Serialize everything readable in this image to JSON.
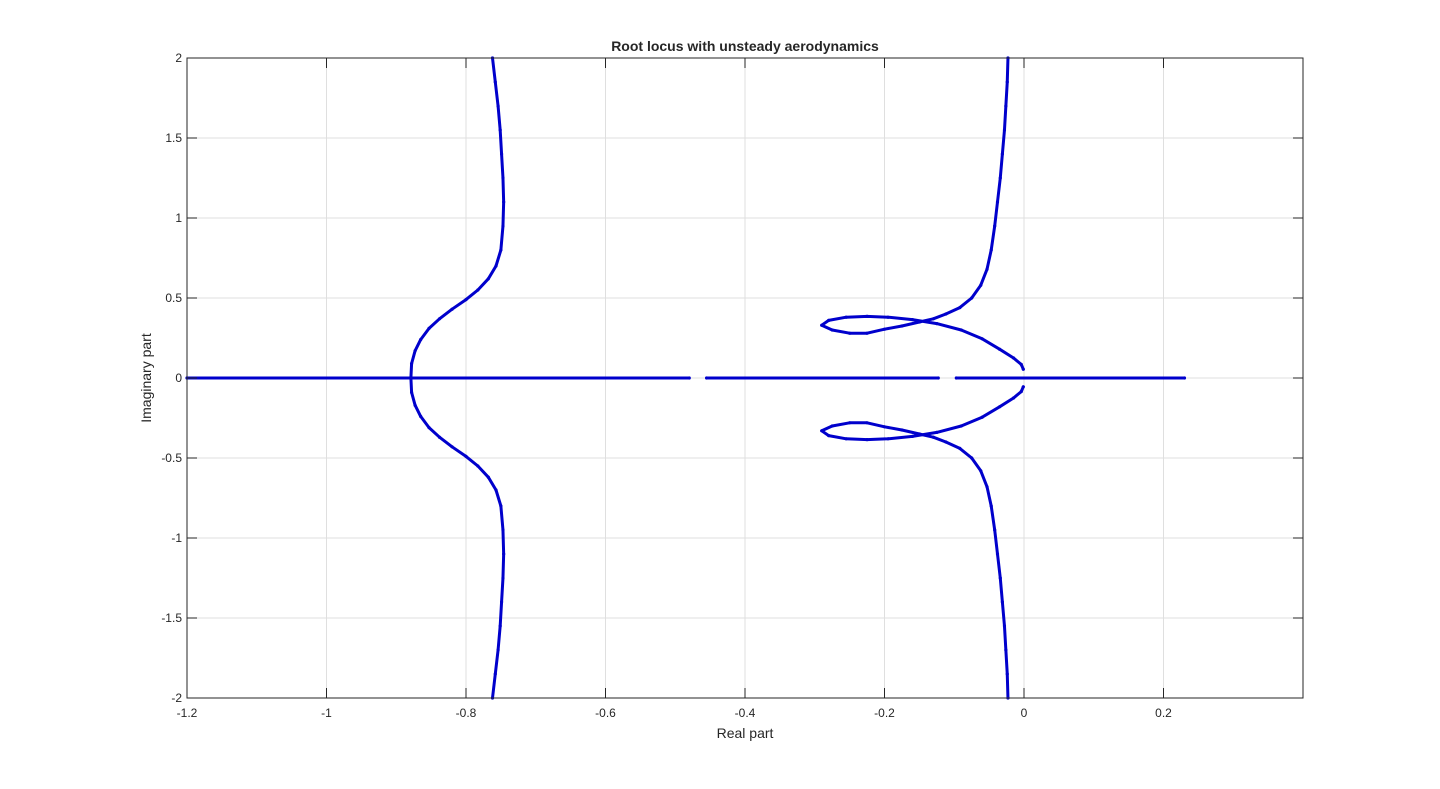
{
  "chart_data": {
    "type": "scatter",
    "title": "Root locus with unsteady aerodynamics",
    "xlabel": "Real part",
    "ylabel": "Imaginary part",
    "xlim": [
      -1.2,
      0.4
    ],
    "ylim": [
      -2,
      2
    ],
    "xticks": [
      -1.2,
      -1,
      -0.8,
      -0.6,
      -0.4,
      -0.2,
      0,
      0.2
    ],
    "xtick_labels": [
      "-1.2",
      "-1",
      "-0.8",
      "-0.6",
      "-0.4",
      "-0.2",
      "0",
      "0.2"
    ],
    "yticks": [
      -2,
      -1.5,
      -1,
      -0.5,
      0,
      0.5,
      1,
      1.5,
      2
    ],
    "ytick_labels": [
      "-2",
      "-1.5",
      "-1",
      "-0.5",
      "0",
      "0.5",
      "1",
      "1.5",
      "2"
    ],
    "grid": true,
    "marker_color": "#0000cc",
    "series": [
      {
        "points": [
          [
            -0.762,
            2.0
          ],
          [
            -0.758,
            1.85
          ],
          [
            -0.754,
            1.7
          ],
          [
            -0.751,
            1.55
          ],
          [
            -0.749,
            1.4
          ],
          [
            -0.747,
            1.25
          ],
          [
            -0.746,
            1.1
          ],
          [
            -0.747,
            0.95
          ],
          [
            -0.75,
            0.8
          ],
          [
            -0.757,
            0.7
          ],
          [
            -0.768,
            0.62
          ],
          [
            -0.783,
            0.55
          ],
          [
            -0.8,
            0.49
          ],
          [
            -0.82,
            0.43
          ],
          [
            -0.838,
            0.37
          ],
          [
            -0.853,
            0.31
          ],
          [
            -0.865,
            0.24
          ],
          [
            -0.873,
            0.17
          ],
          [
            -0.878,
            0.09
          ],
          [
            -0.879,
            0.0
          ]
        ]
      },
      {
        "points": [
          [
            -0.879,
            0.0
          ],
          [
            -0.878,
            -0.09
          ],
          [
            -0.873,
            -0.17
          ],
          [
            -0.865,
            -0.24
          ],
          [
            -0.853,
            -0.31
          ],
          [
            -0.838,
            -0.37
          ],
          [
            -0.82,
            -0.43
          ],
          [
            -0.8,
            -0.49
          ],
          [
            -0.783,
            -0.55
          ],
          [
            -0.768,
            -0.62
          ],
          [
            -0.757,
            -0.7
          ],
          [
            -0.75,
            -0.8
          ],
          [
            -0.747,
            -0.95
          ],
          [
            -0.746,
            -1.1
          ],
          [
            -0.747,
            -1.25
          ],
          [
            -0.749,
            -1.4
          ],
          [
            -0.751,
            -1.55
          ],
          [
            -0.754,
            -1.7
          ],
          [
            -0.758,
            -1.85
          ],
          [
            -0.762,
            -2.0
          ]
        ]
      },
      {
        "points": [
          [
            -0.023,
            2.0
          ],
          [
            -0.024,
            1.85
          ],
          [
            -0.026,
            1.7
          ],
          [
            -0.028,
            1.55
          ],
          [
            -0.031,
            1.4
          ],
          [
            -0.034,
            1.25
          ],
          [
            -0.038,
            1.1
          ],
          [
            -0.042,
            0.95
          ],
          [
            -0.047,
            0.8
          ],
          [
            -0.053,
            0.68
          ],
          [
            -0.062,
            0.58
          ],
          [
            -0.075,
            0.5
          ],
          [
            -0.092,
            0.44
          ],
          [
            -0.112,
            0.4
          ],
          [
            -0.13,
            0.37
          ],
          [
            -0.15,
            0.35
          ],
          [
            -0.175,
            0.325
          ],
          [
            -0.2,
            0.305
          ],
          [
            -0.225,
            0.28
          ],
          [
            -0.25,
            0.28
          ],
          [
            -0.275,
            0.3
          ],
          [
            -0.29,
            0.33
          ],
          [
            -0.28,
            0.36
          ],
          [
            -0.255,
            0.38
          ],
          [
            -0.225,
            0.385
          ],
          [
            -0.195,
            0.38
          ],
          [
            -0.16,
            0.365
          ],
          [
            -0.125,
            0.34
          ],
          [
            -0.09,
            0.3
          ],
          [
            -0.06,
            0.245
          ],
          [
            -0.035,
            0.18
          ],
          [
            -0.015,
            0.125
          ],
          [
            -0.004,
            0.085
          ],
          [
            -0.001,
            0.055
          ]
        ]
      },
      {
        "points": [
          [
            -0.001,
            -0.055
          ],
          [
            -0.004,
            -0.085
          ],
          [
            -0.015,
            -0.125
          ],
          [
            -0.035,
            -0.18
          ],
          [
            -0.06,
            -0.245
          ],
          [
            -0.09,
            -0.3
          ],
          [
            -0.125,
            -0.34
          ],
          [
            -0.16,
            -0.365
          ],
          [
            -0.195,
            -0.38
          ],
          [
            -0.225,
            -0.385
          ],
          [
            -0.255,
            -0.38
          ],
          [
            -0.28,
            -0.36
          ],
          [
            -0.29,
            -0.33
          ],
          [
            -0.275,
            -0.3
          ],
          [
            -0.25,
            -0.28
          ],
          [
            -0.225,
            -0.28
          ],
          [
            -0.2,
            -0.305
          ],
          [
            -0.175,
            -0.325
          ],
          [
            -0.15,
            -0.35
          ],
          [
            -0.13,
            -0.37
          ],
          [
            -0.112,
            -0.4
          ],
          [
            -0.092,
            -0.44
          ],
          [
            -0.075,
            -0.5
          ],
          [
            -0.062,
            -0.58
          ],
          [
            -0.053,
            -0.68
          ],
          [
            -0.047,
            -0.8
          ],
          [
            -0.042,
            -0.95
          ],
          [
            -0.038,
            -1.1
          ],
          [
            -0.034,
            -1.25
          ],
          [
            -0.031,
            -1.4
          ],
          [
            -0.028,
            -1.55
          ],
          [
            -0.026,
            -1.7
          ],
          [
            -0.024,
            -1.85
          ],
          [
            -0.023,
            -2.0
          ]
        ]
      },
      {
        "points": [
          [
            -1.2,
            0.0
          ],
          [
            -0.48,
            0.0
          ]
        ]
      },
      {
        "points": [
          [
            -0.455,
            0.0
          ],
          [
            -0.123,
            0.0
          ]
        ]
      },
      {
        "points": [
          [
            -0.097,
            0.0
          ],
          [
            0.23,
            0.0
          ]
        ]
      }
    ]
  }
}
